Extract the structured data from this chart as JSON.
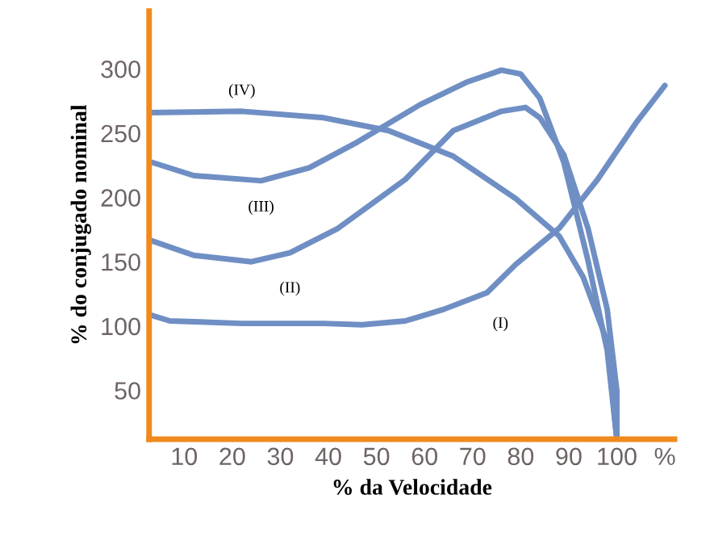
{
  "chart_data": {
    "type": "line",
    "xlabel": "% da Velocidade",
    "ylabel": "% do conjugado nominal",
    "xlim": [
      2.7,
      112
    ],
    "ylim": [
      12,
      345
    ],
    "xticks": [
      10,
      20,
      30,
      40,
      50,
      60,
      70,
      80,
      90,
      100,
      {
        "value": 110,
        "label": "%"
      }
    ],
    "yticks": [
      50,
      100,
      150,
      200,
      250,
      300
    ],
    "grid": false,
    "legend": false,
    "marker": "none",
    "line_style": "solid",
    "series": [
      {
        "name": "(I)",
        "color": "#6f8fc4",
        "x": [
          2.7,
          7,
          22,
          39,
          47,
          56,
          64,
          73,
          79,
          88,
          96,
          104,
          110
        ],
        "values": [
          109,
          104,
          102,
          102,
          101,
          104,
          113,
          126,
          148,
          176,
          214,
          258,
          287
        ]
      },
      {
        "name": "(II)",
        "color": "#6f8fc4",
        "x": [
          2.7,
          12,
          24,
          32,
          42,
          56,
          66,
          76,
          81,
          84,
          89,
          94,
          98,
          100,
          100
        ],
        "values": [
          167,
          155,
          150,
          157,
          176,
          214,
          252,
          267,
          270,
          262,
          233,
          176,
          113,
          50,
          12
        ]
      },
      {
        "name": "(III)",
        "color": "#6f8fc4",
        "x": [
          2.7,
          12,
          26,
          36,
          46,
          59,
          69,
          76,
          80,
          84,
          89,
          94,
          98,
          100
        ],
        "values": [
          228,
          217,
          213,
          223,
          243,
          272,
          290,
          299,
          296,
          277,
          227,
          151,
          81,
          12
        ]
      },
      {
        "name": "(IV)",
        "color": "#6f8fc4",
        "x": [
          2.7,
          22,
          39,
          52.5,
          66,
          79,
          88,
          93,
          98,
          100
        ],
        "values": [
          266,
          267,
          262,
          252,
          232,
          199,
          170,
          138,
          88,
          12
        ]
      }
    ]
  }
}
